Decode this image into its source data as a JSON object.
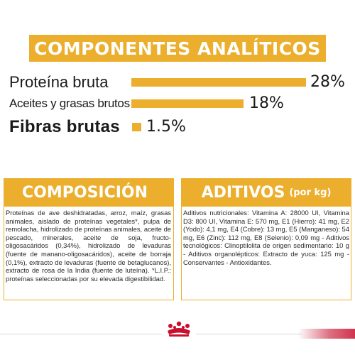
{
  "analytics": {
    "title": "COMPONENTES ANALÍTICOS",
    "rows": [
      {
        "label": "Proteína bruta",
        "value": "28%",
        "percent": 28
      },
      {
        "label": "Aceites y grasas brutos",
        "value": "18%",
        "percent": 18
      },
      {
        "label": "Fibras brutas",
        "value": "1.5%",
        "percent": 1.5
      }
    ]
  },
  "composition": {
    "title": "COMPOSICIÓN",
    "text": "Proteínas de ave deshidratadas, arroz, maíz, grasas animales, aislado de proteínas vegetales*, pulpa de remolacha, hidrolizado de proteínas animales, aceite de pescado, minerales, aceite de soja, fructo-oligosacáridos (0,34%), hidrolizado de levaduras (fuente de manano-oligosacáridos), aceite de borraja (0,1%), extracto de levaduras (fuente de betaglucanos), extracto de rosa de la India (fuente de luteína). *L.I.P.: proteínas seleccionadas por su elevada digestibilidad."
  },
  "additives": {
    "title": "ADITIVOS",
    "subtitle": "(por kg)",
    "text": "Aditivos nutricionales: Vitamina A: 28000 UI, Vitamina D3: 800 UI, Vitamina E: 570 mg, E1 (Hierro): 41 mg, E2 (Yodo): 4,1 mg, E4 (Cobre): 13 mg, E5 (Manganeso): 54 mg, E6 (Zinc): 112 mg, E8 (Selenio): 0,09 mg - Aditivos tecnológicos: Clinoptilolita de origen sedimentario: 10 g - Aditivos organolépticos: Extracto de yuca: 125 mg - Conservantes - Antioxidantes."
  },
  "colors": {
    "accent": "#ecae2d",
    "brand_red": "#c8102e",
    "text": "#1a1a1a"
  },
  "footer": {
    "logo_icon": "royal-canin-crown-icon"
  }
}
